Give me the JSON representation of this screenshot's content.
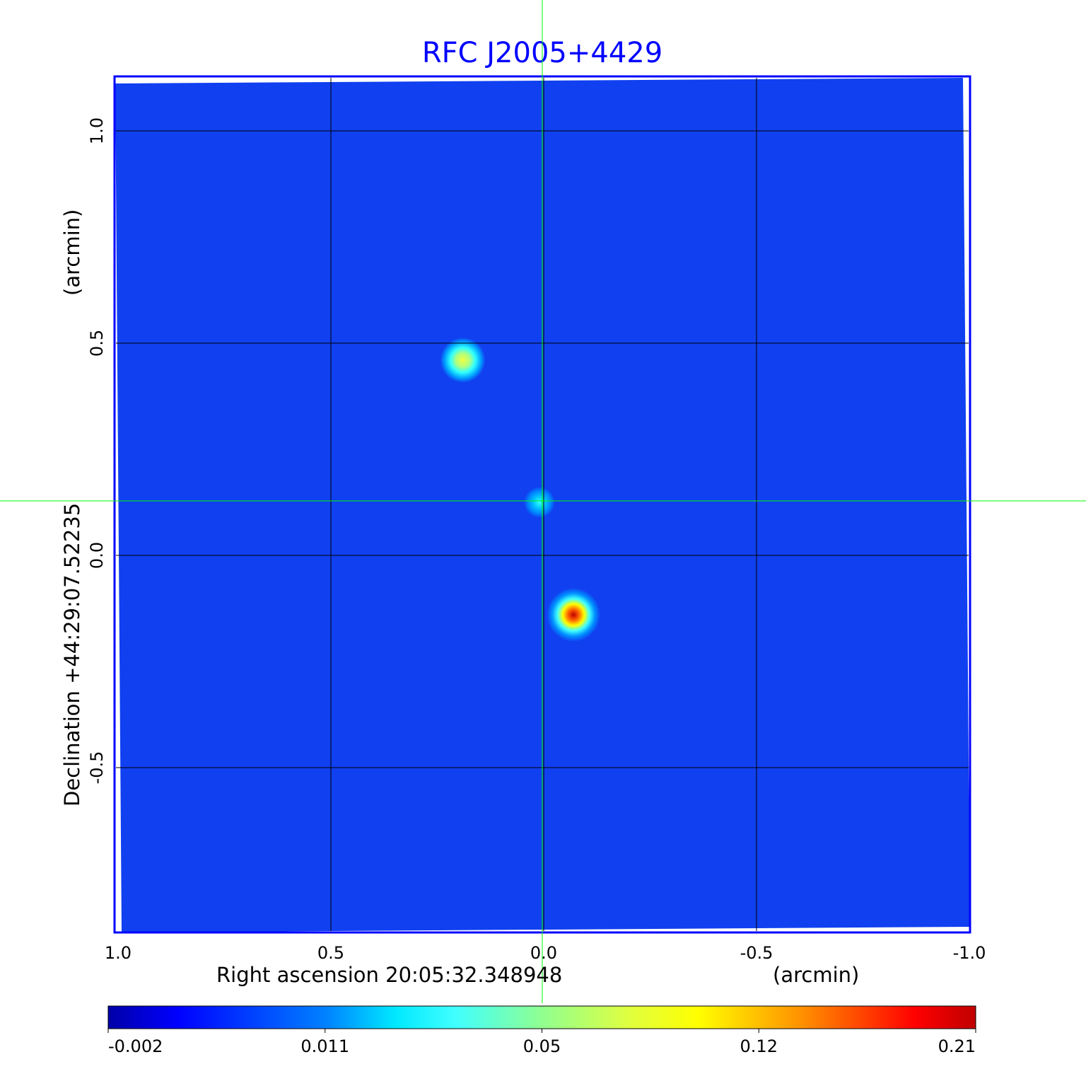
{
  "chart_data": {
    "type": "heatmap",
    "title": "RFC J2005+4429",
    "xlabel": "Right ascension  20:05:32.348948",
    "xunit": "(arcmin)",
    "ylabel": "Declination  +44:29:07.52235",
    "yunit": "(arcmin)",
    "xlim": [
      1.0,
      -1.0
    ],
    "ylim": [
      -1.0,
      1.1
    ],
    "xticks": [
      "1.0",
      "0.5",
      "0.0",
      "-0.5",
      "-1.0"
    ],
    "xtick_values": [
      1.0,
      0.5,
      0.0,
      -0.5,
      -1.0
    ],
    "yticks": [
      "-0.5",
      "0.0",
      "0.5",
      "1.0"
    ],
    "ytick_values": [
      -0.5,
      0.0,
      0.5,
      1.0
    ],
    "grid": true,
    "crosshair": {
      "ra": 0.0,
      "dec": 0.13,
      "color": "#00ff00"
    },
    "colormap": "jet",
    "colorbar": {
      "ticks": [
        "-0.002",
        "0.011",
        "0.05",
        "0.12",
        "0.21"
      ],
      "range": [
        -0.002,
        0.21
      ],
      "placement": "bottom"
    },
    "background_level": 0.0,
    "sources": [
      {
        "ra": 0.19,
        "dec": 0.46,
        "peak": 0.08
      },
      {
        "ra": 0.01,
        "dec": 0.125,
        "peak": 0.03
      },
      {
        "ra": -0.07,
        "dec": -0.14,
        "peak": 0.21
      }
    ],
    "colors": {
      "title": "#0000ff",
      "frame": "#0000ff",
      "background": "#1040f0"
    }
  }
}
